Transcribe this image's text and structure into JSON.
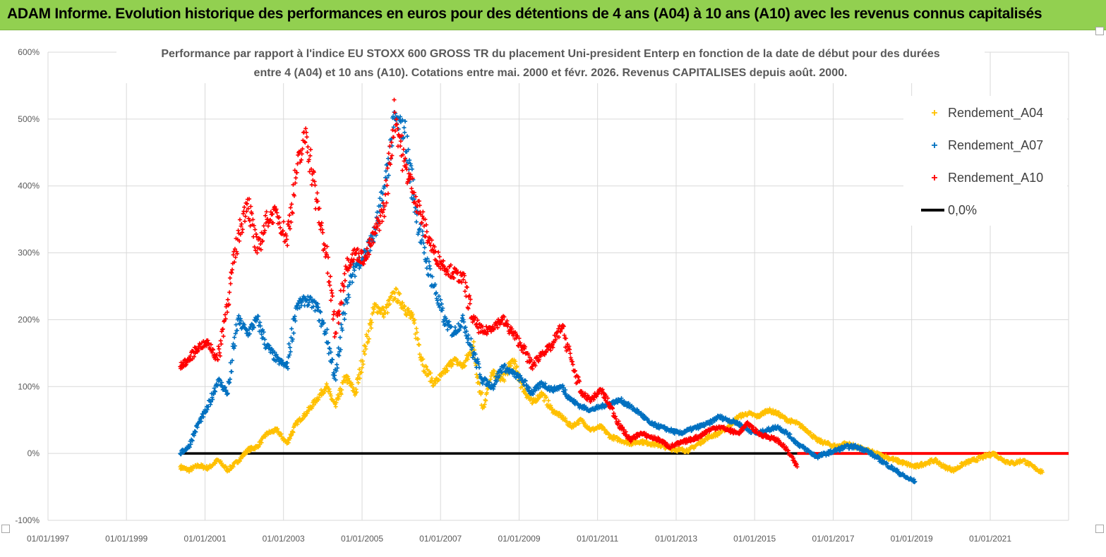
{
  "banner": {
    "title": "ADAM Informe. Evolution historique des performances en euros pour des détentions de 4 ans (A04) à 10 ans (A10) avec les revenus connus capitalisés",
    "background": "#92d050"
  },
  "chart_data": {
    "type": "scatter",
    "title_line1": "Performance par rapport à l'indice EU STOXX 600 GROSS TR  du placement Uni-president Enterp  en fonction de la date de début pour des durées",
    "title_line2": "entre 4 (A04) et 10 ans (A10). Cotations entre mai. 2000 et févr. 2026. Revenus CAPITALISES depuis août. 2000.",
    "x_ticks": [
      "01/01/1997",
      "01/01/1999",
      "01/01/2001",
      "01/01/2003",
      "01/01/2005",
      "01/01/2007",
      "01/01/2009",
      "01/01/2011",
      "01/01/2013",
      "01/01/2015",
      "01/01/2017",
      "01/01/2019",
      "01/01/2021"
    ],
    "y_ticks": [
      "-100%",
      "0%",
      "100%",
      "200%",
      "300%",
      "400%",
      "500%",
      "600%"
    ],
    "xlim": [
      "1997-01-01",
      "2022-12-31"
    ],
    "ylim": [
      -100,
      600
    ],
    "grid": true,
    "legend_position": "top-right",
    "series": [
      {
        "name": "Rendement_A04",
        "color": "#ffc000",
        "marker": "+",
        "points": [
          [
            "2000-05-15",
            -20
          ],
          [
            "2000-08-01",
            -25
          ],
          [
            "2000-11-01",
            -18
          ],
          [
            "2001-02-01",
            -22
          ],
          [
            "2001-05-01",
            -10
          ],
          [
            "2001-08-01",
            -25
          ],
          [
            "2001-11-01",
            -12
          ],
          [
            "2002-02-01",
            5
          ],
          [
            "2002-05-01",
            10
          ],
          [
            "2002-08-01",
            30
          ],
          [
            "2002-11-01",
            35
          ],
          [
            "2003-02-01",
            15
          ],
          [
            "2003-05-01",
            45
          ],
          [
            "2003-08-01",
            60
          ],
          [
            "2003-11-01",
            80
          ],
          [
            "2004-02-01",
            100
          ],
          [
            "2004-05-01",
            70
          ],
          [
            "2004-08-01",
            115
          ],
          [
            "2004-11-01",
            90
          ],
          [
            "2005-02-01",
            160
          ],
          [
            "2005-05-01",
            220
          ],
          [
            "2005-08-01",
            210
          ],
          [
            "2005-11-01",
            240
          ],
          [
            "2006-02-01",
            220
          ],
          [
            "2006-05-01",
            195
          ],
          [
            "2006-08-01",
            130
          ],
          [
            "2006-11-01",
            105
          ],
          [
            "2007-02-01",
            120
          ],
          [
            "2007-05-01",
            140
          ],
          [
            "2007-08-01",
            130
          ],
          [
            "2007-11-01",
            160
          ],
          [
            "2008-02-01",
            70
          ],
          [
            "2008-05-01",
            120
          ],
          [
            "2008-08-01",
            110
          ],
          [
            "2008-11-01",
            140
          ],
          [
            "2009-02-01",
            100
          ],
          [
            "2009-05-01",
            75
          ],
          [
            "2009-08-01",
            90
          ],
          [
            "2009-11-01",
            65
          ],
          [
            "2010-02-01",
            55
          ],
          [
            "2010-05-01",
            40
          ],
          [
            "2010-08-01",
            50
          ],
          [
            "2010-11-01",
            35
          ],
          [
            "2011-02-01",
            40
          ],
          [
            "2011-05-01",
            25
          ],
          [
            "2011-08-01",
            20
          ],
          [
            "2011-11-01",
            15
          ],
          [
            "2012-02-01",
            18
          ],
          [
            "2012-05-01",
            15
          ],
          [
            "2012-08-01",
            12
          ],
          [
            "2012-11-01",
            8
          ],
          [
            "2013-02-01",
            5
          ],
          [
            "2013-05-01",
            5
          ],
          [
            "2013-08-01",
            15
          ],
          [
            "2013-11-01",
            25
          ],
          [
            "2014-02-01",
            30
          ],
          [
            "2014-05-01",
            40
          ],
          [
            "2014-08-01",
            55
          ],
          [
            "2014-11-01",
            60
          ],
          [
            "2015-02-01",
            55
          ],
          [
            "2015-05-01",
            65
          ],
          [
            "2015-08-01",
            60
          ],
          [
            "2015-11-01",
            50
          ],
          [
            "2016-02-01",
            45
          ],
          [
            "2016-05-01",
            35
          ],
          [
            "2016-08-01",
            20
          ],
          [
            "2016-11-01",
            15
          ],
          [
            "2017-02-01",
            10
          ],
          [
            "2017-05-01",
            15
          ],
          [
            "2017-08-01",
            10
          ],
          [
            "2017-11-01",
            5
          ],
          [
            "2018-02-01",
            0
          ],
          [
            "2018-05-01",
            -5
          ],
          [
            "2018-08-01",
            -10
          ],
          [
            "2018-11-01",
            -15
          ],
          [
            "2019-02-01",
            -20
          ],
          [
            "2019-05-01",
            -15
          ],
          [
            "2019-08-01",
            -10
          ],
          [
            "2019-11-01",
            -20
          ],
          [
            "2020-02-01",
            -25
          ],
          [
            "2020-05-01",
            -15
          ],
          [
            "2020-08-01",
            -10
          ],
          [
            "2020-11-01",
            -5
          ],
          [
            "2021-02-01",
            0
          ],
          [
            "2021-05-01",
            -10
          ],
          [
            "2021-08-01",
            -15
          ],
          [
            "2021-11-01",
            -10
          ],
          [
            "2022-02-01",
            -20
          ],
          [
            "2022-05-01",
            -28
          ]
        ]
      },
      {
        "name": "Rendement_A07",
        "color": "#0070c0",
        "marker": "+",
        "points": [
          [
            "2000-05-15",
            0
          ],
          [
            "2000-08-01",
            10
          ],
          [
            "2000-11-01",
            45
          ],
          [
            "2001-02-01",
            70
          ],
          [
            "2001-05-01",
            110
          ],
          [
            "2001-08-01",
            90
          ],
          [
            "2001-11-01",
            200
          ],
          [
            "2002-02-01",
            180
          ],
          [
            "2002-05-01",
            200
          ],
          [
            "2002-08-01",
            160
          ],
          [
            "2002-11-01",
            140
          ],
          [
            "2003-02-01",
            130
          ],
          [
            "2003-05-01",
            220
          ],
          [
            "2003-08-01",
            230
          ],
          [
            "2003-11-01",
            220
          ],
          [
            "2004-02-01",
            180
          ],
          [
            "2004-05-01",
            110
          ],
          [
            "2004-08-01",
            230
          ],
          [
            "2004-11-01",
            280
          ],
          [
            "2005-02-01",
            300
          ],
          [
            "2005-05-01",
            330
          ],
          [
            "2005-08-01",
            400
          ],
          [
            "2005-11-01",
            500
          ],
          [
            "2006-02-01",
            480
          ],
          [
            "2006-05-01",
            380
          ],
          [
            "2006-08-01",
            300
          ],
          [
            "2006-11-01",
            250
          ],
          [
            "2007-02-01",
            200
          ],
          [
            "2007-05-01",
            180
          ],
          [
            "2007-08-01",
            200
          ],
          [
            "2007-11-01",
            150
          ],
          [
            "2008-02-01",
            110
          ],
          [
            "2008-05-01",
            100
          ],
          [
            "2008-08-01",
            130
          ],
          [
            "2008-11-01",
            120
          ],
          [
            "2009-02-01",
            110
          ],
          [
            "2009-05-01",
            90
          ],
          [
            "2009-08-01",
            105
          ],
          [
            "2009-11-01",
            95
          ],
          [
            "2010-02-01",
            100
          ],
          [
            "2010-05-01",
            80
          ],
          [
            "2010-08-01",
            70
          ],
          [
            "2010-11-01",
            65
          ],
          [
            "2011-02-01",
            70
          ],
          [
            "2011-05-01",
            75
          ],
          [
            "2011-08-01",
            80
          ],
          [
            "2011-11-01",
            70
          ],
          [
            "2012-02-01",
            60
          ],
          [
            "2012-05-01",
            45
          ],
          [
            "2012-08-01",
            40
          ],
          [
            "2012-11-01",
            35
          ],
          [
            "2013-02-01",
            30
          ],
          [
            "2013-05-01",
            35
          ],
          [
            "2013-08-01",
            40
          ],
          [
            "2013-11-01",
            45
          ],
          [
            "2014-02-01",
            55
          ],
          [
            "2014-05-01",
            50
          ],
          [
            "2014-08-01",
            45
          ],
          [
            "2014-11-01",
            35
          ],
          [
            "2015-02-01",
            30
          ],
          [
            "2015-05-01",
            35
          ],
          [
            "2015-08-01",
            40
          ],
          [
            "2015-11-01",
            30
          ],
          [
            "2016-02-01",
            15
          ],
          [
            "2016-05-01",
            5
          ],
          [
            "2016-08-01",
            -5
          ],
          [
            "2016-11-01",
            0
          ],
          [
            "2017-02-01",
            5
          ],
          [
            "2017-05-01",
            10
          ],
          [
            "2017-08-01",
            10
          ],
          [
            "2017-11-01",
            5
          ],
          [
            "2018-02-01",
            -5
          ],
          [
            "2018-05-01",
            -15
          ],
          [
            "2018-08-01",
            -25
          ],
          [
            "2018-11-01",
            -35
          ],
          [
            "2019-02-01",
            -42
          ]
        ]
      },
      {
        "name": "Rendement_A10",
        "color": "#ff0000",
        "marker": "+",
        "points": [
          [
            "2000-05-15",
            130
          ],
          [
            "2000-08-01",
            140
          ],
          [
            "2000-11-01",
            160
          ],
          [
            "2001-02-01",
            165
          ],
          [
            "2001-05-01",
            140
          ],
          [
            "2001-08-01",
            230
          ],
          [
            "2001-11-01",
            320
          ],
          [
            "2002-02-01",
            380
          ],
          [
            "2002-05-01",
            300
          ],
          [
            "2002-08-01",
            350
          ],
          [
            "2002-11-01",
            360
          ],
          [
            "2003-02-01",
            320
          ],
          [
            "2003-05-01",
            420
          ],
          [
            "2003-08-01",
            480
          ],
          [
            "2003-11-01",
            380
          ],
          [
            "2004-02-01",
            300
          ],
          [
            "2004-05-01",
            180
          ],
          [
            "2004-08-01",
            280
          ],
          [
            "2004-11-01",
            300
          ],
          [
            "2005-02-01",
            290
          ],
          [
            "2005-05-01",
            330
          ],
          [
            "2005-08-01",
            370
          ],
          [
            "2005-11-01",
            510
          ],
          [
            "2006-02-01",
            430
          ],
          [
            "2006-05-01",
            390
          ],
          [
            "2006-08-01",
            340
          ],
          [
            "2006-11-01",
            300
          ],
          [
            "2007-02-01",
            280
          ],
          [
            "2007-05-01",
            270
          ],
          [
            "2007-08-01",
            260
          ],
          [
            "2007-11-01",
            200
          ],
          [
            "2008-02-01",
            180
          ],
          [
            "2008-05-01",
            190
          ],
          [
            "2008-08-01",
            200
          ],
          [
            "2008-11-01",
            180
          ],
          [
            "2009-02-01",
            160
          ],
          [
            "2009-05-01",
            130
          ],
          [
            "2009-08-01",
            150
          ],
          [
            "2009-11-01",
            160
          ],
          [
            "2010-02-01",
            190
          ],
          [
            "2010-05-01",
            140
          ],
          [
            "2010-08-01",
            90
          ],
          [
            "2010-11-01",
            80
          ],
          [
            "2011-02-01",
            95
          ],
          [
            "2011-05-01",
            70
          ],
          [
            "2011-08-01",
            40
          ],
          [
            "2011-11-01",
            20
          ],
          [
            "2012-02-01",
            30
          ],
          [
            "2012-05-01",
            25
          ],
          [
            "2012-08-01",
            20
          ],
          [
            "2012-11-01",
            10
          ],
          [
            "2013-02-01",
            15
          ],
          [
            "2013-05-01",
            20
          ],
          [
            "2013-08-01",
            25
          ],
          [
            "2013-11-01",
            35
          ],
          [
            "2014-02-01",
            40
          ],
          [
            "2014-05-01",
            35
          ],
          [
            "2014-08-01",
            30
          ],
          [
            "2014-11-01",
            45
          ],
          [
            "2015-02-01",
            30
          ],
          [
            "2015-05-01",
            25
          ],
          [
            "2015-08-01",
            20
          ],
          [
            "2015-11-01",
            5
          ],
          [
            "2016-02-01",
            -20
          ]
        ]
      },
      {
        "name": "0,0%",
        "color": "#000000",
        "marker": "line",
        "points": [
          [
            "2000-05-15",
            0
          ],
          [
            "2016-02-01",
            0
          ]
        ]
      }
    ],
    "zero_marker_red_range": [
      "2016-02-01",
      "2022-12-31"
    ]
  }
}
